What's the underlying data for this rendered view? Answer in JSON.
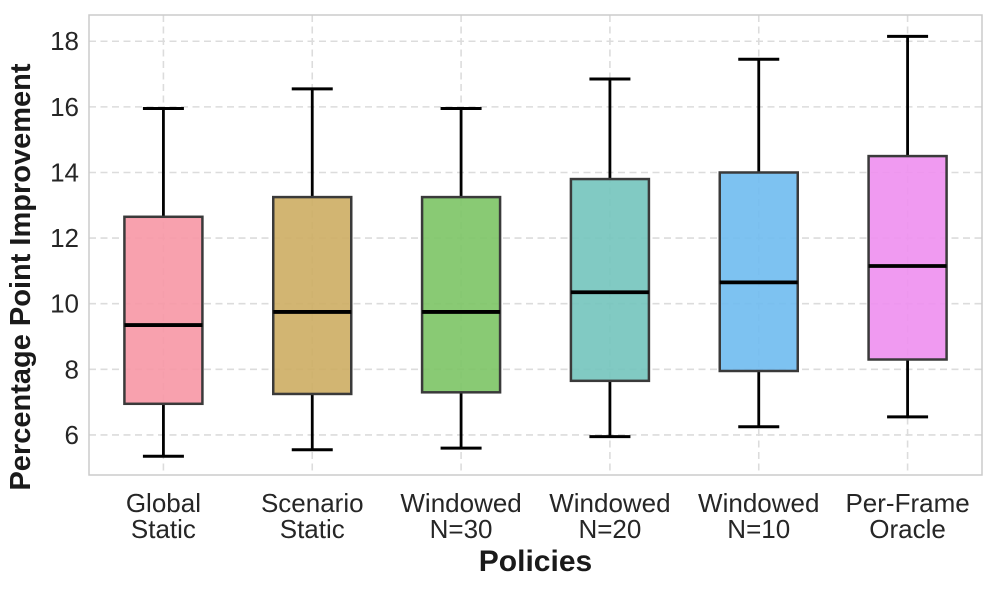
{
  "chart_data": {
    "type": "box",
    "title": "",
    "xlabel": "Policies",
    "ylabel": "Percentage Point Improvement",
    "categories": [
      [
        "Global",
        "Static"
      ],
      [
        "Scenario",
        "Static"
      ],
      [
        "Windowed",
        "N=30"
      ],
      [
        "Windowed",
        "N=20"
      ],
      [
        "Windowed",
        "N=10"
      ],
      [
        "Per-Frame",
        "Oracle"
      ]
    ],
    "boxes": [
      {
        "label": "Global Static",
        "whisker_low": 5.35,
        "q1": 6.95,
        "median": 9.35,
        "q3": 12.65,
        "whisker_high": 15.95,
        "color": "#F797A5"
      },
      {
        "label": "Scenario Static",
        "whisker_low": 5.55,
        "q1": 7.25,
        "median": 9.75,
        "q3": 13.25,
        "whisker_high": 16.55,
        "color": "#CDAD63"
      },
      {
        "label": "Windowed N=30",
        "whisker_low": 5.6,
        "q1": 7.3,
        "median": 9.75,
        "q3": 13.25,
        "whisker_high": 15.95,
        "color": "#7CC465"
      },
      {
        "label": "Windowed N=20",
        "whisker_low": 5.95,
        "q1": 7.65,
        "median": 10.35,
        "q3": 13.8,
        "whisker_high": 16.85,
        "color": "#73C4BC"
      },
      {
        "label": "Windowed N=10",
        "whisker_low": 6.25,
        "q1": 7.95,
        "median": 10.65,
        "q3": 14.0,
        "whisker_high": 17.45,
        "color": "#6FBBF0"
      },
      {
        "label": "Per-Frame Oracle",
        "whisker_low": 6.55,
        "q1": 8.3,
        "median": 11.15,
        "q3": 14.5,
        "whisker_high": 18.15,
        "color": "#EE8FF0"
      }
    ],
    "ylim": [
      4.78,
      18.8
    ],
    "yticks": [
      6,
      8,
      10,
      12,
      14,
      16,
      18
    ],
    "grid": {
      "show": true,
      "style": "dashed",
      "horizontal": true,
      "vertical": true
    },
    "legend": {
      "show": false
    },
    "colors": {
      "background": "#FFFFFF",
      "grid": "#DCDCDC",
      "spine": "#CBCBCB",
      "box_edge": "#3A3A3A",
      "median": "#000000",
      "whisker": "#000000",
      "tick_text": "#262626",
      "label_text": "#1A1A1A"
    }
  }
}
